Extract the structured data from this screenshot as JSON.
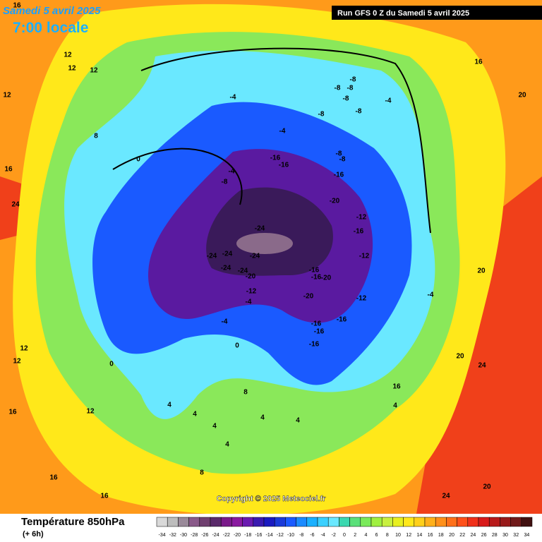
{
  "header": {
    "date": "Samedi 5 avril 2025",
    "time": "7:00 locale",
    "run": "Run GFS 0 Z du Samedi 5 avril 2025"
  },
  "footer": {
    "title": "Température 850hPa",
    "lead": "(+ 6h)",
    "copyright": "Copyright © 2025 Meteociel.fr"
  },
  "scale": {
    "values": [
      -34,
      -32,
      -30,
      -28,
      -26,
      -24,
      -22,
      -20,
      -18,
      -16,
      -14,
      -12,
      -10,
      -8,
      -6,
      -4,
      -2,
      0,
      2,
      4,
      6,
      8,
      10,
      12,
      14,
      16,
      18,
      20,
      22,
      24,
      26,
      28,
      30,
      32,
      34
    ],
    "colors": [
      "#d9d9d9",
      "#bdbdbd",
      "#9a8a9a",
      "#8a5a8a",
      "#704070",
      "#5a2a6a",
      "#7a1a8a",
      "#8a1aa0",
      "#6a1ab0",
      "#3a1ab0",
      "#1a1ac0",
      "#1a3ad8",
      "#1a5aff",
      "#1a8aff",
      "#1ab0ff",
      "#3ad0ff",
      "#6ae8ff",
      "#3ad8b0",
      "#5ae07a",
      "#7aea5a",
      "#a0f040",
      "#c8f040",
      "#e8f020",
      "#ffe81a",
      "#ffd01a",
      "#ffb01a",
      "#ff901a",
      "#ff701a",
      "#ff501a",
      "#f0301a",
      "#d81a1a",
      "#b81a1a",
      "#981a1a",
      "#701a1a",
      "#401010"
    ]
  },
  "map": {
    "labels": [
      -24,
      -24,
      -24,
      -24,
      -24,
      -24,
      -16,
      -16,
      -20,
      -20,
      -20,
      -12,
      -4,
      -16,
      -16,
      -16,
      -20,
      -16,
      -12,
      -12,
      -12,
      -16,
      -16,
      -16,
      -16,
      -8,
      -8,
      -8,
      -8,
      -8,
      -8,
      -8,
      -8,
      -8,
      -4,
      -4,
      -4,
      -4,
      -4,
      -4,
      0,
      0,
      0,
      4,
      4,
      4,
      4,
      4,
      4,
      4,
      8,
      8,
      8,
      12,
      12,
      12,
      12,
      12,
      12,
      12,
      16,
      16,
      16,
      16,
      16,
      20,
      20,
      20,
      20,
      24,
      24,
      24,
      16,
      16
    ]
  }
}
